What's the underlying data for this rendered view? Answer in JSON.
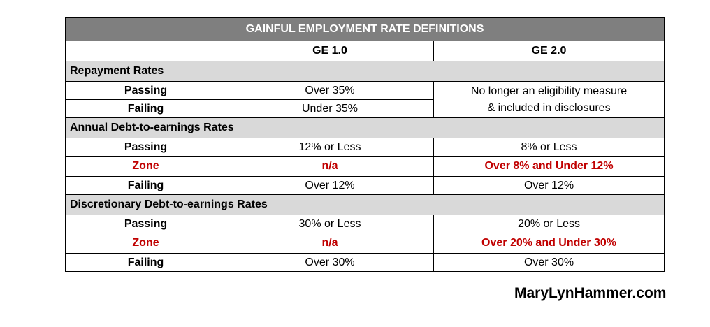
{
  "table": {
    "title": "GAINFUL EMPLOYMENT RATE DEFINITIONS",
    "columns": [
      "",
      "GE 1.0",
      "GE 2.0"
    ],
    "sections": {
      "repayment": {
        "heading": "Repayment Rates",
        "passing": {
          "label": "Passing",
          "ge1": "Over 35%"
        },
        "failing": {
          "label": "Failing",
          "ge1": "Under 35%"
        },
        "ge2_merged_line1": "No longer an eligibility measure",
        "ge2_merged_line2": "& included in disclosures"
      },
      "annual": {
        "heading": "Annual Debt-to-earnings Rates",
        "passing": {
          "label": "Passing",
          "ge1": "12% or Less",
          "ge2": "8% or Less"
        },
        "zone": {
          "label": "Zone",
          "ge1": "n/a",
          "ge2": "Over 8% and Under 12%"
        },
        "failing": {
          "label": "Failing",
          "ge1": "Over 12%",
          "ge2": "Over 12%"
        }
      },
      "discretionary": {
        "heading": "Discretionary Debt-to-earnings Rates",
        "passing": {
          "label": "Passing",
          "ge1": "30% or Less",
          "ge2": "20% or Less"
        },
        "zone": {
          "label": "Zone",
          "ge1": "n/a",
          "ge2": "Over 20% and Under 30%"
        },
        "failing": {
          "label": "Failing",
          "ge1": "Over 30%",
          "ge2": "Over 30%"
        }
      }
    }
  },
  "watermark": "MaryLynHammer.com",
  "colors": {
    "title_bg": "#7f7f7f",
    "section_bg": "#d9d9d9",
    "zone_text": "#c00000"
  }
}
